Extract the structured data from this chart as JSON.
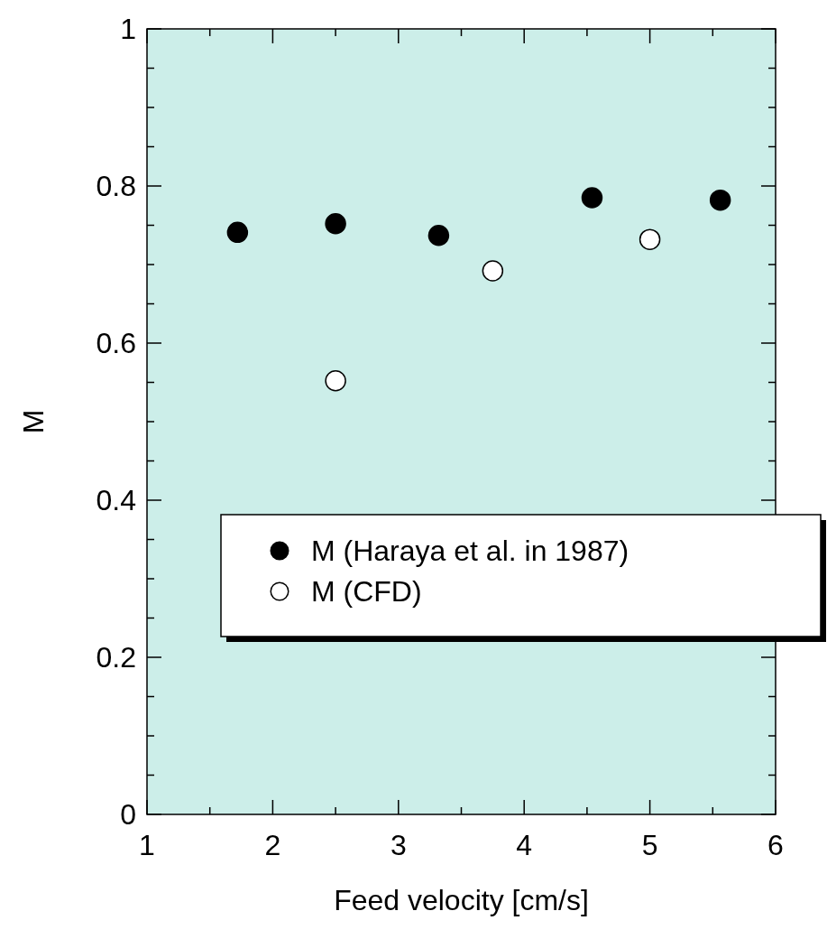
{
  "chart_data": {
    "type": "scatter",
    "xlabel": "Feed velocity [cm/s]",
    "ylabel": "M",
    "xlim": [
      1,
      6
    ],
    "ylim": [
      0,
      1
    ],
    "xticks": [
      1,
      {
        "value": 1.5,
        "label": null
      },
      2,
      {
        "value": 2.5,
        "label": null
      },
      3,
      {
        "value": 3.5,
        "label": null
      },
      4,
      {
        "value": 4.5,
        "label": null
      },
      5,
      {
        "value": 5.5,
        "label": null
      },
      6
    ],
    "yticks": [
      0,
      {
        "value": 0.05,
        "label": null
      },
      {
        "value": 0.1,
        "label": null
      },
      {
        "value": 0.15,
        "label": null
      },
      0.2,
      {
        "value": 0.25,
        "label": null
      },
      {
        "value": 0.3,
        "label": null
      },
      {
        "value": 0.35,
        "label": null
      },
      0.4,
      {
        "value": 0.45,
        "label": null
      },
      {
        "value": 0.5,
        "label": null
      },
      {
        "value": 0.55,
        "label": null
      },
      0.6,
      {
        "value": 0.65,
        "label": null
      },
      {
        "value": 0.7,
        "label": null
      },
      {
        "value": 0.75,
        "label": null
      },
      0.8,
      {
        "value": 0.85,
        "label": null
      },
      {
        "value": 0.9,
        "label": null
      },
      {
        "value": 0.95,
        "label": null
      },
      1
    ],
    "marker": "circle",
    "legend": "right",
    "grid": false,
    "series": [
      {
        "name": "M (Haraya et al. in 1987)",
        "color": "#000000",
        "x": [
          1.72,
          2.5,
          3.32,
          4.54,
          5.56
        ],
        "values": [
          0.741,
          0.752,
          0.737,
          0.785,
          0.782
        ]
      },
      {
        "name": "M (CFD)",
        "color": "#ffffff",
        "x": [
          2.5,
          3.75,
          5.0
        ],
        "values": [
          0.552,
          0.692,
          0.732
        ]
      }
    ]
  }
}
